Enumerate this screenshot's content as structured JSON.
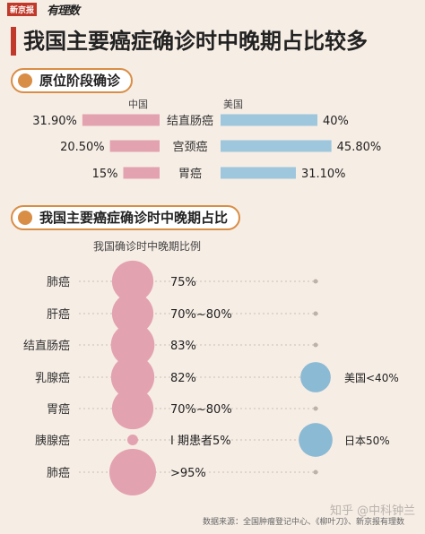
{
  "brand": {
    "name": "新京报",
    "sub": "有理数"
  },
  "title": "我国主要癌症确诊时中晚期占比较多",
  "section1": {
    "title": "原位阶段确诊",
    "left_label": "中国",
    "right_label": "美国"
  },
  "chart_data": [
    {
      "type": "bar",
      "categories": [
        "结直肠癌",
        "宫颈癌",
        "胃癌"
      ],
      "series": [
        {
          "name": "中国",
          "values": [
            31.9,
            20.5,
            15
          ],
          "labels": [
            "31.90%",
            "20.50%",
            "15%"
          ],
          "color": "#e3a2b0"
        },
        {
          "name": "美国",
          "values": [
            40,
            45.8,
            31.1
          ],
          "labels": [
            "40%",
            "45.80%",
            "31.10%"
          ],
          "color": "#9ec6dc"
        }
      ],
      "title": "原位阶段确诊"
    },
    {
      "type": "scatter",
      "title": "我国主要癌症确诊时中晚期占比",
      "subtitle": "我国确诊时中晚期比例",
      "categories": [
        "肺癌",
        "肝癌",
        "结直肠癌",
        "乳腺癌",
        "胃癌",
        "胰腺癌",
        "肺癌"
      ],
      "series": [
        {
          "values": [
            75,
            75,
            83,
            82,
            75,
            5,
            95
          ],
          "labels": [
            "75%",
            "70%~80%",
            "83%",
            "82%",
            "70%~80%",
            "I 期患者5%",
            ">95%"
          ],
          "color": "#e3a2b0"
        }
      ],
      "annotations": [
        {
          "row": 3,
          "label": "美国<40%",
          "value": 40,
          "color": "#8bbad4"
        },
        {
          "row": 5,
          "label": "日本50%",
          "value": 50,
          "color": "#8bbad4"
        }
      ]
    }
  ],
  "section2": {
    "title": "我国主要癌症确诊时中晚期占比"
  },
  "footer": "数据来源：全国肿瘤登记中心、《柳叶刀》、新京报有理数",
  "watermark": "知乎 @中科钟兰"
}
